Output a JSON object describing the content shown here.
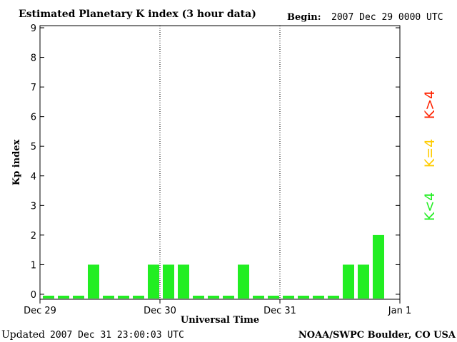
{
  "chart_data": {
    "type": "bar",
    "title": "Estimated Planetary K index (3 hour data)",
    "begin_label": "Begin:",
    "begin_value": "2007 Dec 29 0000 UTC",
    "ylabel": "Kp index",
    "xlabel": "Universal Time",
    "ylim": [
      0,
      9
    ],
    "y_ticks": [
      "0",
      "1",
      "2",
      "3",
      "4",
      "5",
      "6",
      "7",
      "8",
      "9"
    ],
    "x_tick_labels": [
      "Dec 29",
      "Dec 30",
      "Dec 31",
      "Jan 1"
    ],
    "bars_per_day": 8,
    "days": 3,
    "values": [
      0,
      0,
      0,
      1,
      0,
      0,
      0,
      1,
      1,
      1,
      0,
      0,
      0,
      1,
      0,
      0,
      0,
      0,
      0,
      0,
      1,
      1,
      2
    ],
    "legend": [
      {
        "label": "K<4",
        "color": "#22ee22"
      },
      {
        "label": "K=4",
        "color": "#ffcc00"
      },
      {
        "label": "K>4",
        "color": "#ff2200"
      }
    ]
  },
  "footer": {
    "updated_label": "Updated",
    "updated_value": "2007 Dec 31 23:00:03 UTC",
    "credit": "NOAA/SWPC Boulder, CO USA"
  },
  "colors": {
    "bar_low": "#22ee22",
    "bar_mid": "#ffcc00",
    "bar_high": "#ff2200",
    "axis": "#000000"
  }
}
